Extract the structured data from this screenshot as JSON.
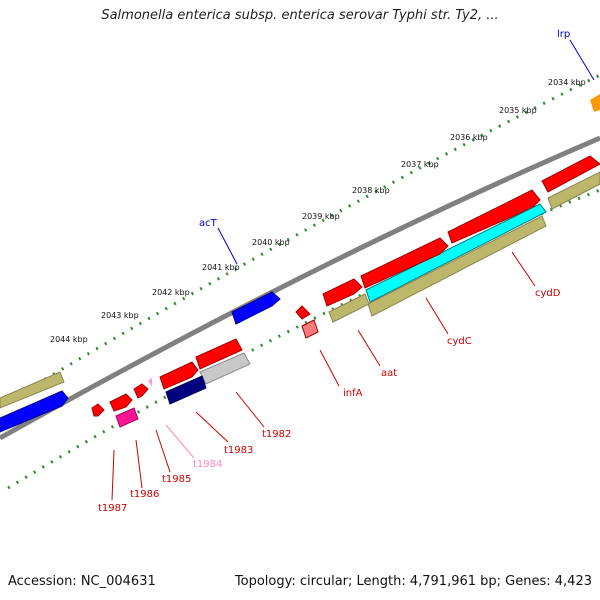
{
  "title": "Salmonella enterica subsp. enterica serovar Typhi str. Ty2, ...",
  "footer": {
    "accession": "Accession: NC_004631",
    "summary": "Topology: circular; Length: 4,791,961 bp; Genes: 4,423"
  },
  "scale_labels": [
    "2034 kbp",
    "2035 kbp",
    "2036 kbp",
    "2037 kbp",
    "2038 kbp",
    "2039 kbp",
    "2040 kbp",
    "2041 kbp",
    "2042 kbp",
    "2043 kbp",
    "2044 kbp"
  ],
  "outer_gene_labels": [
    "lrp",
    "acT"
  ],
  "inner_gene_labels": [
    "cydD",
    "cydC",
    "aat",
    "infA",
    "t1982",
    "t1983",
    "t1984",
    "t1985",
    "t1986",
    "t1987"
  ],
  "colors": {
    "scale": "#2e8b2e",
    "backbone": "#808080",
    "gene_red": "#ff0000",
    "gene_blue": "#0000ff",
    "gene_navy": "#000080",
    "gene_cyan": "#00ffff",
    "gene_olive": "#bdb76b",
    "gene_magenta": "#ff1493",
    "gene_pink": "#ff99cc",
    "gene_orange": "#ff9900",
    "gene_gray": "#c8c8c8",
    "label_red": "#cc0000",
    "label_blue": "#0000cc",
    "label_pink": "#ff88bb"
  }
}
